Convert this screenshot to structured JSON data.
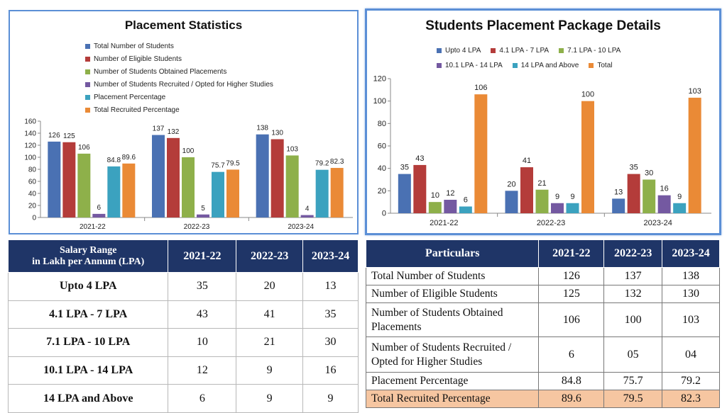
{
  "chart_data": [
    {
      "type": "bar",
      "title": "Placement Statistics",
      "categories": [
        "2021-22",
        "2022-23",
        "2023-24"
      ],
      "ylim": [
        0,
        160
      ],
      "yticks": [
        0,
        20,
        40,
        60,
        80,
        100,
        120,
        140,
        160
      ],
      "legend_position": "top",
      "series": [
        {
          "name": "Total Number of Students",
          "color": "#4a71b3",
          "values": [
            126,
            137,
            138
          ]
        },
        {
          "name": "Number of Eligible Students",
          "color": "#b43c3a",
          "values": [
            125,
            132,
            130
          ]
        },
        {
          "name": "Number of  Students Obtained Placements",
          "color": "#8eb04a",
          "values": [
            106,
            100,
            103
          ]
        },
        {
          "name": "Number of Students Recruited / Opted for Higher Studies",
          "color": "#7459a1",
          "values": [
            6,
            5,
            4
          ]
        },
        {
          "name": "Placement Percentage",
          "color": "#3ba2bf",
          "values": [
            84.8,
            75.7,
            79.2
          ]
        },
        {
          "name": "Total Recruited Percentage",
          "color": "#ea8a36",
          "values": [
            89.6,
            79.5,
            82.3
          ]
        }
      ]
    },
    {
      "type": "bar",
      "title": "Students Placement Package Details",
      "categories": [
        "2021-22",
        "2022-23",
        "2023-24"
      ],
      "ylim": [
        0,
        120
      ],
      "yticks": [
        0,
        20,
        40,
        60,
        80,
        100,
        120
      ],
      "legend_position": "top",
      "series": [
        {
          "name": "Upto 4 LPA",
          "color": "#4a71b3",
          "values": [
            35,
            20,
            13
          ]
        },
        {
          "name": "4.1 LPA - 7 LPA",
          "color": "#b43c3a",
          "values": [
            43,
            41,
            35
          ]
        },
        {
          "name": "7.1 LPA - 10 LPA",
          "color": "#8eb04a",
          "values": [
            10,
            21,
            30
          ]
        },
        {
          "name": "10.1 LPA - 14 LPA",
          "color": "#7459a1",
          "values": [
            12,
            9,
            16
          ]
        },
        {
          "name": "14 LPA and Above",
          "color": "#3ba2bf",
          "values": [
            6,
            9,
            9
          ]
        },
        {
          "name": "Total",
          "color": "#ea8a36",
          "values": [
            106,
            100,
            103
          ]
        }
      ]
    }
  ],
  "salary_table": {
    "header": {
      "label_line1": "Salary Range",
      "label_line2": "in Lakh per Annum (LPA)",
      "years": [
        "2021-22",
        "2022-23",
        "2023-24"
      ]
    },
    "rows": [
      {
        "label": "Upto 4 LPA",
        "values": [
          "35",
          "20",
          "13"
        ]
      },
      {
        "label": "4.1 LPA - 7 LPA",
        "values": [
          "43",
          "41",
          "35"
        ]
      },
      {
        "label": "7.1 LPA - 10 LPA",
        "values": [
          "10",
          "21",
          "30"
        ]
      },
      {
        "label": "10.1 LPA - 14 LPA",
        "values": [
          "12",
          "9",
          "16"
        ]
      },
      {
        "label": "14 LPA and Above",
        "values": [
          "6",
          "9",
          "9"
        ]
      }
    ]
  },
  "particulars_table": {
    "header": {
      "label": "Particulars",
      "years": [
        "2021-22",
        "2022-23",
        "2023-24"
      ]
    },
    "rows": [
      {
        "label": "Total Number of Students",
        "values": [
          "126",
          "137",
          "138"
        ]
      },
      {
        "label": "Number of Eligible Students",
        "values": [
          "125",
          "132",
          "130"
        ]
      },
      {
        "label": "Number of  Students Obtained Placements",
        "values": [
          "106",
          "100",
          "103"
        ]
      },
      {
        "label": "Number of Students Recruited / Opted for Higher Studies",
        "values": [
          "6",
          "05",
          "04"
        ]
      },
      {
        "label": "Placement Percentage",
        "values": [
          "84.8",
          "75.7",
          "79.2"
        ]
      },
      {
        "label": "Total Recruited Percentage",
        "values": [
          "89.6",
          "79.5",
          "82.3"
        ],
        "highlight_color": "#f6c6a1"
      }
    ]
  }
}
